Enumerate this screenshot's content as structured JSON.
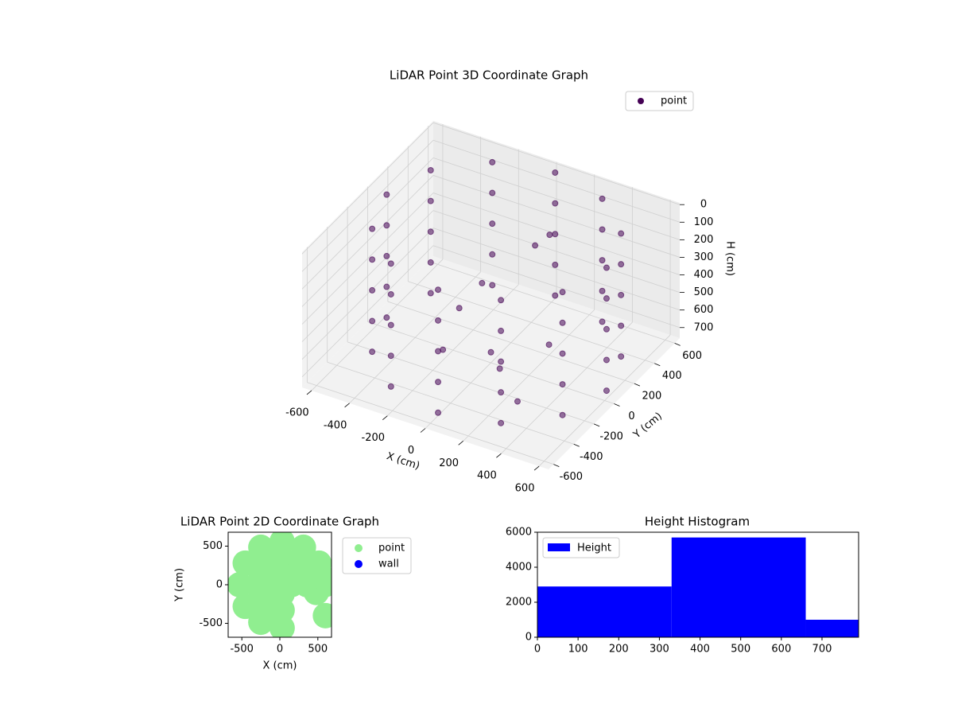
{
  "chart_data": [
    {
      "type": "scatter3d",
      "title": "LiDAR Point 3D Coordinate Graph",
      "xlabel": "X (cm)",
      "ylabel": "Y (cm)",
      "zlabel": "H (cm)",
      "xlim": [
        -650,
        650
      ],
      "ylim": [
        -650,
        650
      ],
      "zlim": [
        760,
        -10
      ],
      "xticks": [
        -600,
        -400,
        -200,
        0,
        200,
        400,
        600
      ],
      "yticks": [
        -600,
        -400,
        -200,
        0,
        200,
        400,
        600
      ],
      "zticks": [
        0,
        100,
        200,
        300,
        400,
        500,
        600,
        700
      ],
      "legend": "upper right",
      "series": [
        {
          "name": "point",
          "color": "#440154",
          "x": [
            610,
            610,
            610,
            610,
            610,
            532,
            532,
            532,
            532,
            532,
            320,
            320,
            320,
            320,
            320,
            30,
            30,
            30,
            30,
            30,
            -260,
            -260,
            -260,
            -260,
            -260,
            -472,
            -472,
            -472,
            -472,
            -472,
            -550,
            -550,
            -550,
            -550,
            -550,
            -472,
            -472,
            -472,
            -472,
            -472,
            -260,
            -260,
            -260,
            -260,
            -260,
            30,
            30,
            30,
            30,
            30,
            320,
            320,
            320,
            320,
            320,
            532,
            532,
            532,
            532,
            532,
            0,
            200,
            -200,
            300,
            -300,
            100,
            150,
            100,
            -100
          ],
          "y": [
            0,
            0,
            0,
            0,
            0,
            290,
            290,
            290,
            290,
            290,
            502,
            502,
            502,
            502,
            502,
            580,
            580,
            580,
            580,
            580,
            502,
            502,
            502,
            502,
            502,
            290,
            290,
            290,
            290,
            290,
            0,
            0,
            0,
            0,
            0,
            -290,
            -290,
            -290,
            -290,
            -290,
            -502,
            -502,
            -502,
            -502,
            -502,
            -580,
            -580,
            -580,
            -580,
            -580,
            -502,
            -502,
            -502,
            -502,
            -502,
            -290,
            -290,
            -290,
            -290,
            -290,
            0,
            200,
            -100,
            -300,
            250,
            -100,
            300,
            250,
            100
          ],
          "z": [
            0,
            175,
            350,
            525,
            700,
            0,
            175,
            350,
            525,
            700,
            0,
            175,
            350,
            525,
            700,
            0,
            175,
            350,
            525,
            700,
            0,
            175,
            350,
            525,
            700,
            0,
            175,
            350,
            525,
            700,
            0,
            175,
            350,
            525,
            700,
            0,
            175,
            350,
            525,
            700,
            0,
            175,
            350,
            525,
            700,
            0,
            175,
            350,
            525,
            700,
            0,
            175,
            350,
            525,
            700,
            0,
            175,
            350,
            525,
            700,
            700,
            700,
            700,
            700,
            700,
            700,
            150,
            200,
            400
          ]
        }
      ]
    },
    {
      "type": "scatter",
      "title": "LiDAR Point 2D Coordinate Graph",
      "xlabel": "X (cm)",
      "ylabel": "Y (cm)",
      "xlim": [
        -680,
        680
      ],
      "ylim": [
        -680,
        680
      ],
      "xticks": [
        -500,
        0,
        500
      ],
      "yticks": [
        -500,
        0,
        500
      ],
      "legend": "outside right",
      "series": [
        {
          "name": "point",
          "color": "#90ee90",
          "x": [
            590,
            515,
            310,
            30,
            -250,
            -455,
            -530,
            -455,
            -250,
            30,
            360,
            263,
            30,
            -203,
            -300,
            -203,
            30,
            150,
            30,
            -90,
            30,
            30,
            480,
            560,
            600
          ],
          "y": [
            0,
            280,
            485,
            560,
            485,
            280,
            0,
            -280,
            -485,
            -560,
            0,
            233,
            330,
            233,
            0,
            -233,
            -330,
            0,
            120,
            0,
            -120,
            0,
            -100,
            100,
            -400
          ]
        },
        {
          "name": "wall",
          "color": "#0000ff",
          "x": [],
          "y": []
        }
      ]
    },
    {
      "type": "histogram",
      "title": "Height Histogram",
      "bins": [
        0,
        330,
        660,
        790
      ],
      "values": [
        2900,
        5700,
        1000
      ],
      "series_name": "Height",
      "color": "#0000ff",
      "xlim": [
        0,
        790
      ],
      "ylim": [
        0,
        6000
      ],
      "xticks": [
        0,
        100,
        200,
        300,
        400,
        500,
        600,
        700
      ],
      "yticks": [
        0,
        2000,
        4000,
        6000
      ],
      "legend": "upper left"
    }
  ]
}
